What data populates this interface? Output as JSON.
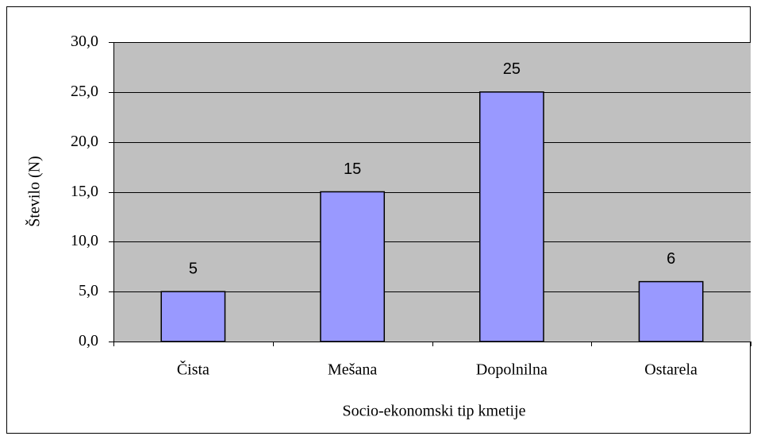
{
  "chart_data": {
    "type": "bar",
    "x_label": "Socio-ekonomski tip kmetije",
    "y_label": "Število (N)",
    "categories": [
      "Čista",
      "Mešana",
      "Dopolnilna",
      "Ostarela"
    ],
    "values": [
      5,
      15,
      25,
      6
    ],
    "color": "#9999ff",
    "ylim": [
      0,
      30
    ],
    "yticks": [
      {
        "value": 0,
        "label": "0,0"
      },
      {
        "value": 5,
        "label": "5,0"
      },
      {
        "value": 10,
        "label": "10,0"
      },
      {
        "value": 15,
        "label": "15,0"
      },
      {
        "value": 20,
        "label": "20,0"
      },
      {
        "value": 25,
        "label": "25,0"
      },
      {
        "value": 30,
        "label": "30,0"
      }
    ],
    "grid": true
  }
}
